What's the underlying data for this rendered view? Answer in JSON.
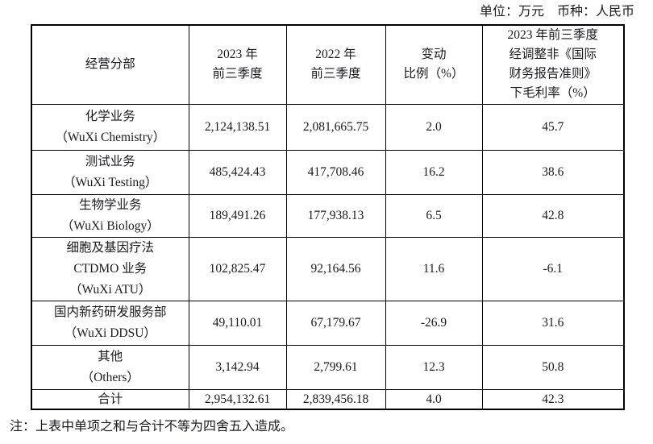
{
  "meta": {
    "unit_line": "单位：万元　币种：人民币"
  },
  "table": {
    "headers": [
      {
        "id": "segment",
        "lines": [
          "经营分部"
        ]
      },
      {
        "id": "q3-2023",
        "lines": [
          "2023 年",
          "前三季度"
        ]
      },
      {
        "id": "q3-2022",
        "lines": [
          "2022 年",
          "前三季度"
        ]
      },
      {
        "id": "change-pct",
        "lines": [
          "变动",
          "比例（%）"
        ]
      },
      {
        "id": "gross-margin",
        "lines": [
          "2023 年前三季度",
          "经调整非《国际",
          "财务报告准则》",
          "下毛利率（%）"
        ]
      }
    ],
    "rows": [
      {
        "segment": [
          "化学业务",
          "（WuXi Chemistry）"
        ],
        "v2023": "2,124,138.51",
        "v2022": "2,081,665.75",
        "change": "2.0",
        "margin": "45.7"
      },
      {
        "segment": [
          "测试业务",
          "（WuXi Testing）"
        ],
        "v2023": "485,424.43",
        "v2022": "417,708.46",
        "change": "16.2",
        "margin": "38.6"
      },
      {
        "segment": [
          "生物学业务",
          "（WuXi Biology）"
        ],
        "v2023": "189,491.26",
        "v2022": "177,938.13",
        "change": "6.5",
        "margin": "42.8"
      },
      {
        "segment": [
          "细胞及基因疗法",
          "CTDMO 业务",
          "（WuXi ATU）"
        ],
        "v2023": "102,825.47",
        "v2022": "92,164.56",
        "change": "11.6",
        "margin": "-6.1"
      },
      {
        "segment": [
          "国内新药研发服务部",
          "（WuXi DDSU）"
        ],
        "v2023": "49,110.01",
        "v2022": "67,179.67",
        "change": "-26.9",
        "margin": "31.6"
      },
      {
        "segment": [
          "其他",
          "（Others）"
        ],
        "v2023": "3,142.94",
        "v2022": "2,799.61",
        "change": "12.3",
        "margin": "50.8"
      },
      {
        "segment": [
          "合计"
        ],
        "v2023": "2,954,132.61",
        "v2022": "2,839,456.18",
        "change": "4.0",
        "margin": "42.3",
        "is_total": true
      }
    ],
    "colors": {
      "border": "#000000",
      "text": "#1b1b1f",
      "background": "#ffffff"
    }
  },
  "footnote": "注：上表中单项之和与合计不等为四舍五入造成。"
}
